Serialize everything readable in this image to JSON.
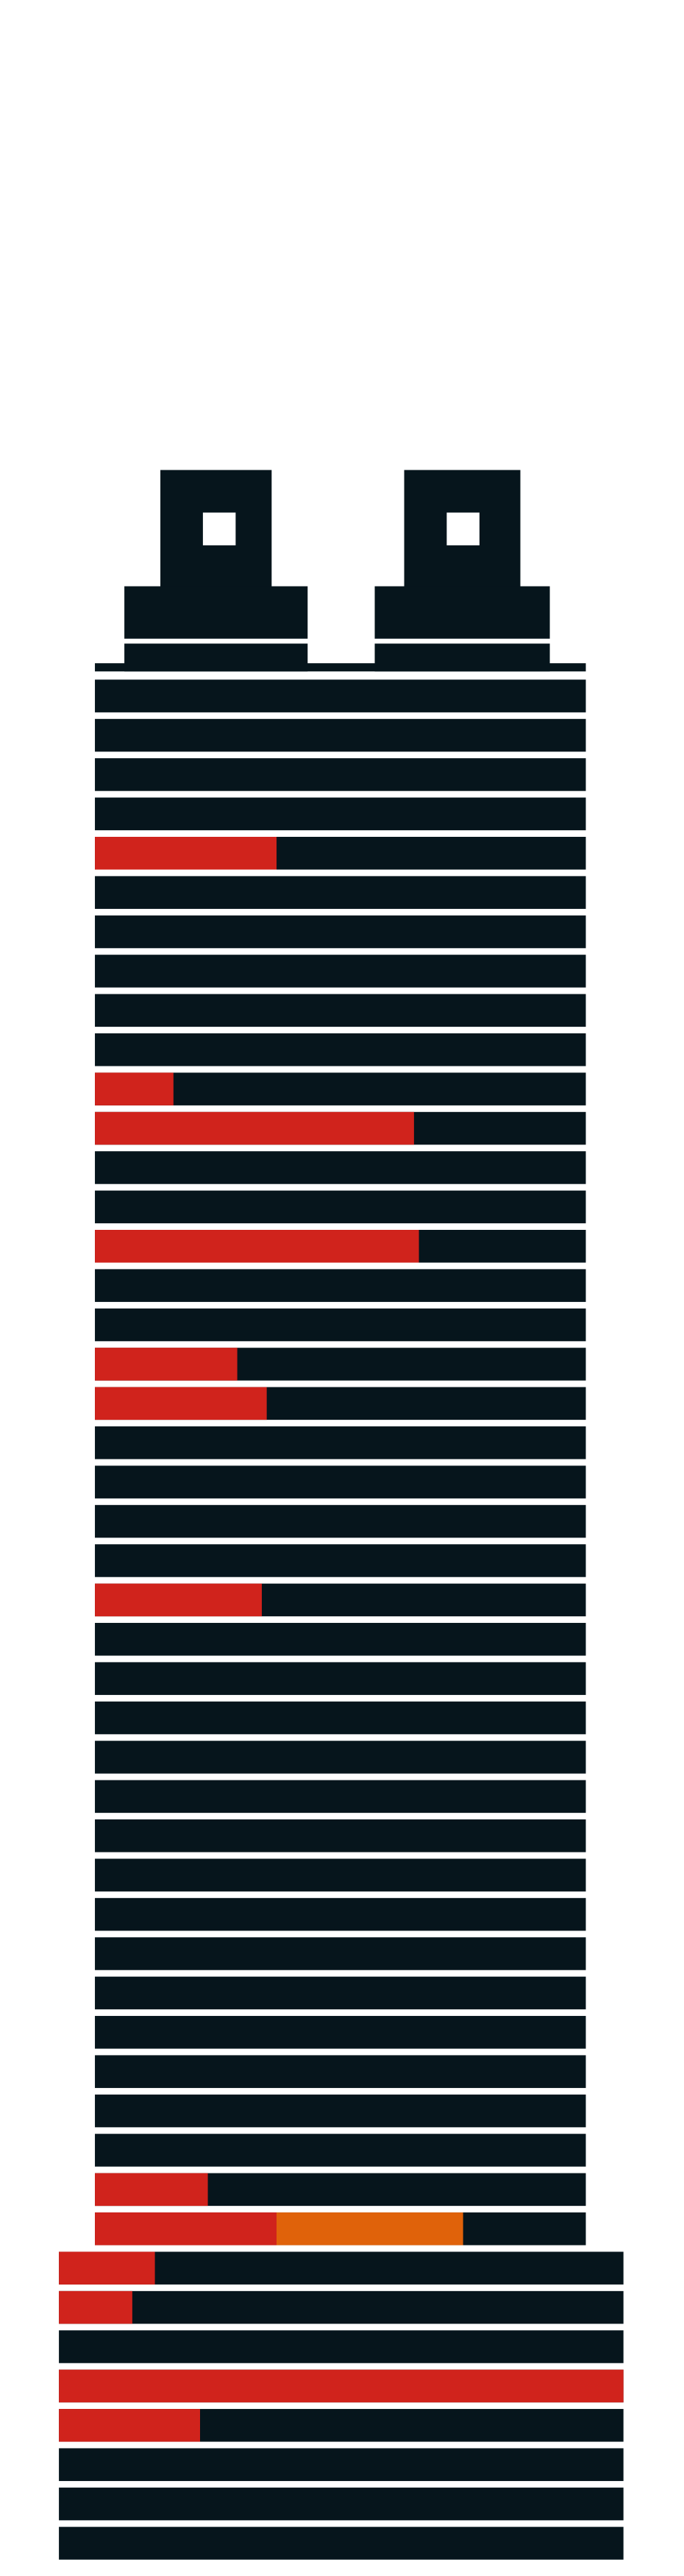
{
  "chart_data": {
    "type": "building",
    "base_color": "#06151c",
    "series": [
      {
        "color": "#d0231c",
        "values": [
          0,
          0,
          0,
          0,
          37,
          0,
          0,
          0,
          0,
          0,
          16,
          65,
          0,
          0,
          66,
          0,
          0,
          29,
          35,
          0,
          0,
          0,
          0,
          34,
          0,
          0,
          0,
          0,
          0,
          0,
          0,
          0,
          0,
          0,
          0,
          0,
          0,
          0,
          23,
          37,
          17,
          13,
          0,
          100,
          25,
          0,
          0,
          0
        ]
      },
      {
        "color": "#e0620a",
        "values": [
          0,
          0,
          0,
          0,
          0,
          0,
          0,
          0,
          0,
          0,
          0,
          0,
          0,
          0,
          0,
          0,
          0,
          0,
          0,
          0,
          0,
          0,
          0,
          0,
          0,
          0,
          0,
          0,
          0,
          0,
          0,
          0,
          0,
          0,
          0,
          0,
          0,
          0,
          0,
          38,
          0,
          0,
          0,
          0,
          0,
          0,
          0,
          0
        ]
      }
    ]
  }
}
